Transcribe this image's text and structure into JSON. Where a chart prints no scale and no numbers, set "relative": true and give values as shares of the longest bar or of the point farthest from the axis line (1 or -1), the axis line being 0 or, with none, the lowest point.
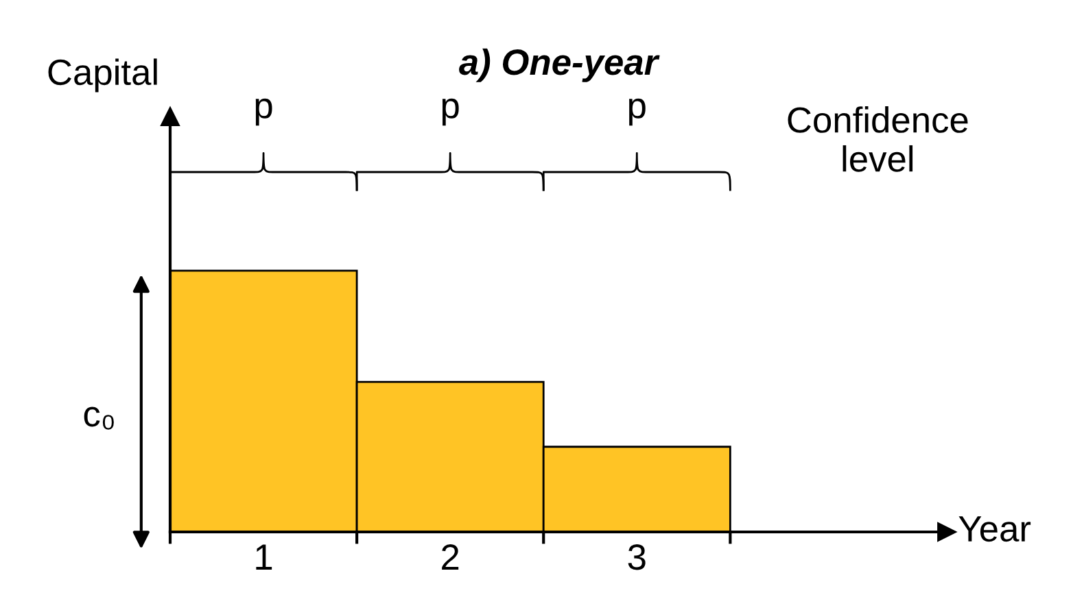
{
  "chart_data": {
    "type": "bar",
    "title": "a) One-year",
    "ylabel": "Capital",
    "categories": [
      "1",
      "2",
      "3"
    ],
    "values": [
      1.0,
      0.574,
      0.326
    ],
    "color": "#ffc425",
    "relative": true,
    "annotations": [
      "p",
      "p",
      "p",
      "Confidence level",
      "c₀",
      "Year"
    ]
  }
}
